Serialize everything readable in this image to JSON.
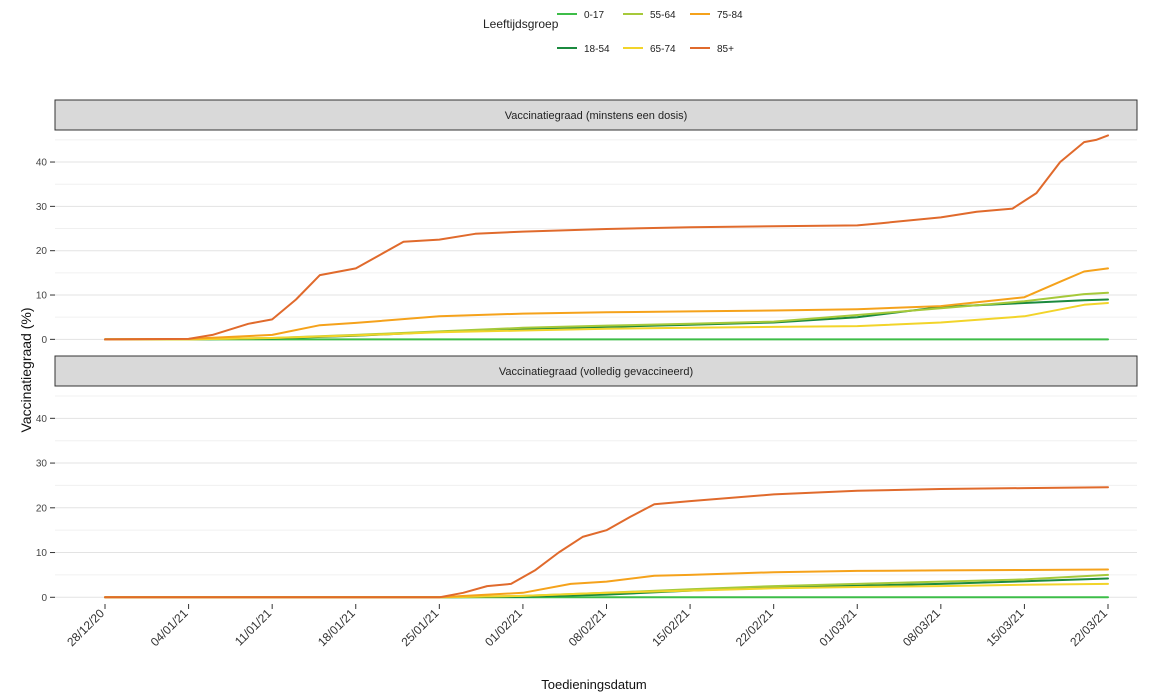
{
  "legend": {
    "title": "Leeftijdsgroep",
    "placement": "top",
    "entries": [
      {
        "label": "0-17",
        "color": "#3dbd48"
      },
      {
        "label": "55-64",
        "color": "#a6c93a"
      },
      {
        "label": "75-84",
        "color": "#f5a21b"
      },
      {
        "label": "18-54",
        "color": "#1b8a3f"
      },
      {
        "label": "65-74",
        "color": "#f2d42a"
      },
      {
        "label": "85+",
        "color": "#e06a2c"
      }
    ]
  },
  "chart_data": {
    "type": "line",
    "xlabel": "Toedieningsdatum",
    "ylabel": "Vaccinatiegraad (%)",
    "ylim": [
      -1.5,
      47
    ],
    "yticks": [
      0,
      10,
      20,
      30,
      40
    ],
    "x_ticks": [
      "28/12/20",
      "04/01/21",
      "11/01/21",
      "18/01/21",
      "25/01/21",
      "01/02/21",
      "08/02/21",
      "15/02/21",
      "22/02/21",
      "01/03/21",
      "08/03/21",
      "15/03/21",
      "22/03/21"
    ],
    "grid": true,
    "panels": [
      {
        "title": "Vaccinatiegraad (minstens een dosis)",
        "series": [
          {
            "name": "0-17",
            "x": [
              "28/12/20",
              "22/03/21"
            ],
            "y": [
              0,
              0
            ]
          },
          {
            "name": "18-54",
            "x": [
              "28/12/20",
              "04/01/21",
              "11/01/21",
              "18/01/21",
              "25/01/21",
              "01/02/21",
              "08/02/21",
              "15/02/21",
              "22/02/21",
              "01/03/21",
              "08/03/21",
              "15/03/21",
              "20/03/21",
              "22/03/21"
            ],
            "y": [
              0,
              0,
              0.2,
              0.8,
              1.7,
              2.4,
              2.8,
              3.3,
              3.8,
              5.0,
              7.3,
              8.2,
              8.8,
              9.0
            ]
          },
          {
            "name": "55-64",
            "x": [
              "28/12/20",
              "04/01/21",
              "11/01/21",
              "18/01/21",
              "25/01/21",
              "01/02/21",
              "08/02/21",
              "15/02/21",
              "22/02/21",
              "01/03/21",
              "08/03/21",
              "15/03/21",
              "20/03/21",
              "22/03/21"
            ],
            "y": [
              0,
              0,
              0.3,
              1.0,
              1.8,
              2.6,
              3.1,
              3.5,
              4.0,
              5.5,
              7.0,
              8.6,
              10.2,
              10.5
            ]
          },
          {
            "name": "65-74",
            "x": [
              "28/12/20",
              "04/01/21",
              "11/01/21",
              "18/01/21",
              "25/01/21",
              "01/02/21",
              "08/02/21",
              "15/02/21",
              "22/02/21",
              "01/03/21",
              "08/03/21",
              "15/03/21",
              "20/03/21",
              "22/03/21"
            ],
            "y": [
              0,
              0,
              0.3,
              0.9,
              1.6,
              2.0,
              2.4,
              2.6,
              2.8,
              3.0,
              3.8,
              5.2,
              7.8,
              8.2
            ]
          },
          {
            "name": "75-84",
            "x": [
              "28/12/20",
              "04/01/21",
              "11/01/21",
              "15/01/21",
              "18/01/21",
              "25/01/21",
              "01/02/21",
              "08/02/21",
              "15/02/21",
              "22/02/21",
              "01/03/21",
              "08/03/21",
              "15/03/21",
              "18/03/21",
              "20/03/21",
              "22/03/21"
            ],
            "y": [
              0,
              0.1,
              1.0,
              3.2,
              3.7,
              5.2,
              5.8,
              6.1,
              6.3,
              6.5,
              6.8,
              7.5,
              9.5,
              13.0,
              15.3,
              16.0
            ]
          },
          {
            "name": "85+",
            "x": [
              "28/12/20",
              "04/01/21",
              "06/01/21",
              "09/01/21",
              "11/01/21",
              "13/01/21",
              "15/01/21",
              "18/01/21",
              "20/01/21",
              "22/01/21",
              "25/01/21",
              "28/01/21",
              "01/02/21",
              "08/02/21",
              "15/02/21",
              "22/02/21",
              "01/03/21",
              "03/03/21",
              "08/03/21",
              "11/03/21",
              "14/03/21",
              "16/03/21",
              "18/03/21",
              "20/03/21",
              "21/03/21",
              "22/03/21"
            ],
            "y": [
              0,
              0.1,
              1.0,
              3.5,
              4.5,
              9.0,
              14.5,
              16.0,
              19.0,
              22.0,
              22.5,
              23.8,
              24.3,
              24.9,
              25.3,
              25.5,
              25.7,
              26.2,
              27.5,
              28.8,
              29.5,
              33.0,
              40.0,
              44.5,
              45.0,
              46.0
            ]
          }
        ]
      },
      {
        "title": "Vaccinatiegraad (volledig gevaccineerd)",
        "series": [
          {
            "name": "0-17",
            "x": [
              "28/12/20",
              "22/03/21"
            ],
            "y": [
              0,
              0
            ]
          },
          {
            "name": "18-54",
            "x": [
              "28/12/20",
              "25/01/21",
              "01/02/21",
              "08/02/21",
              "15/02/21",
              "22/02/21",
              "01/03/21",
              "08/03/21",
              "15/03/21",
              "22/03/21"
            ],
            "y": [
              0,
              0,
              0.1,
              0.6,
              1.5,
              2.2,
              2.6,
              3.0,
              3.6,
              4.2
            ]
          },
          {
            "name": "55-64",
            "x": [
              "28/12/20",
              "25/01/21",
              "01/02/21",
              "08/02/21",
              "15/02/21",
              "22/02/21",
              "01/03/21",
              "08/03/21",
              "15/03/21",
              "22/03/21"
            ],
            "y": [
              0,
              0,
              0.3,
              1.0,
              1.8,
              2.5,
              3.0,
              3.5,
              4.0,
              5.0
            ]
          },
          {
            "name": "65-74",
            "x": [
              "28/12/20",
              "25/01/21",
              "01/02/21",
              "08/02/21",
              "15/02/21",
              "22/02/21",
              "01/03/21",
              "08/03/21",
              "15/03/21",
              "22/03/21"
            ],
            "y": [
              0,
              0,
              0.3,
              1.0,
              1.5,
              2.0,
              2.3,
              2.5,
              2.8,
              3.0
            ]
          },
          {
            "name": "75-84",
            "x": [
              "28/12/20",
              "25/01/21",
              "01/02/21",
              "05/02/21",
              "08/02/21",
              "12/02/21",
              "15/02/21",
              "22/02/21",
              "01/03/21",
              "08/03/21",
              "15/03/21",
              "22/03/21"
            ],
            "y": [
              0,
              0,
              1.0,
              3.0,
              3.5,
              4.8,
              5.0,
              5.6,
              5.9,
              6.0,
              6.1,
              6.2
            ]
          },
          {
            "name": "85+",
            "x": [
              "28/12/20",
              "25/01/21",
              "27/01/21",
              "29/01/21",
              "31/01/21",
              "02/02/21",
              "04/02/21",
              "06/02/21",
              "08/02/21",
              "10/02/21",
              "12/02/21",
              "15/02/21",
              "22/02/21",
              "01/03/21",
              "08/03/21",
              "15/03/21",
              "22/03/21"
            ],
            "y": [
              0,
              0,
              1.0,
              2.5,
              3.0,
              6.0,
              10.0,
              13.5,
              15.0,
              18.0,
              20.8,
              21.5,
              23.0,
              23.8,
              24.2,
              24.4,
              24.6
            ]
          }
        ]
      }
    ]
  }
}
